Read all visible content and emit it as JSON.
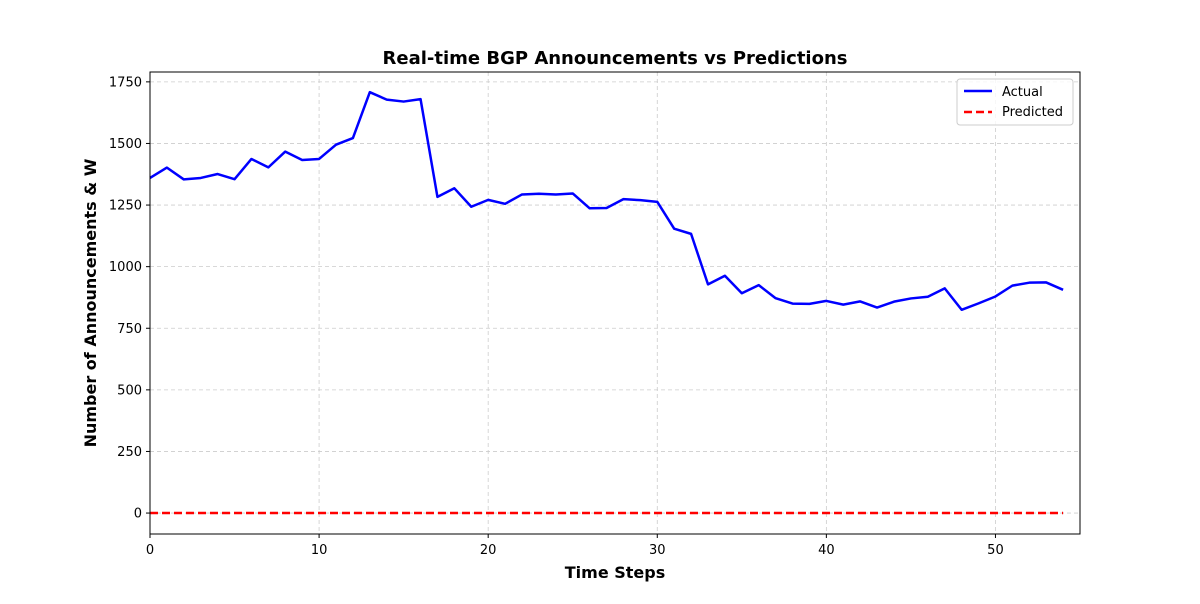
{
  "chart_data": {
    "type": "line",
    "title": "Real-time BGP Announcements vs Predictions",
    "xlabel": "Time Steps",
    "ylabel": "Number of Announcements & W",
    "xlim": [
      0,
      55
    ],
    "ylim": [
      -85,
      1790
    ],
    "xticks": [
      0,
      10,
      20,
      30,
      40,
      50
    ],
    "yticks": [
      0,
      250,
      500,
      750,
      1000,
      1250,
      1500,
      1750
    ],
    "grid": true,
    "grid_style": "dashed",
    "legend_position": "upper right",
    "series": [
      {
        "name": "Actual",
        "color": "#0000ff",
        "line_style": "solid",
        "x": [
          0,
          1,
          2,
          3,
          4,
          5,
          6,
          7,
          8,
          9,
          10,
          11,
          12,
          13,
          14,
          15,
          16,
          17,
          18,
          19,
          20,
          21,
          22,
          23,
          24,
          25,
          26,
          27,
          28,
          29,
          30,
          31,
          32,
          33,
          34,
          35,
          36,
          37,
          38,
          39,
          40,
          41,
          42,
          43,
          44,
          45,
          46,
          47,
          48,
          49,
          50,
          51,
          52,
          53,
          54
        ],
        "values": [
          1360,
          1402,
          1354,
          1360,
          1376,
          1355,
          1437,
          1403,
          1467,
          1433,
          1437,
          1495,
          1522,
          1708,
          1678,
          1670,
          1680,
          1283,
          1318,
          1243,
          1271,
          1255,
          1293,
          1296,
          1293,
          1297,
          1237,
          1238,
          1274,
          1270,
          1263,
          1154,
          1133,
          928,
          963,
          892,
          925,
          872,
          850,
          849,
          861,
          846,
          859,
          834,
          858,
          871,
          878,
          912,
          825,
          851,
          879,
          923,
          935,
          936,
          906
        ]
      },
      {
        "name": "Predicted",
        "color": "#ff0000",
        "line_style": "dashed",
        "x": [
          0,
          1,
          2,
          3,
          4,
          5,
          6,
          7,
          8,
          9,
          10,
          11,
          12,
          13,
          14,
          15,
          16,
          17,
          18,
          19,
          20,
          21,
          22,
          23,
          24,
          25,
          26,
          27,
          28,
          29,
          30,
          31,
          32,
          33,
          34,
          35,
          36,
          37,
          38,
          39,
          40,
          41,
          42,
          43,
          44,
          45,
          46,
          47,
          48,
          49,
          50,
          51,
          52,
          53,
          54
        ],
        "values": [
          0,
          0,
          0,
          0,
          0,
          0,
          0,
          0,
          0,
          0,
          0,
          0,
          0,
          0,
          0,
          0,
          0,
          0,
          0,
          0,
          0,
          0,
          0,
          0,
          0,
          0,
          0,
          0,
          0,
          0,
          0,
          0,
          0,
          0,
          0,
          0,
          0,
          0,
          0,
          0,
          0,
          0,
          0,
          0,
          0,
          0,
          0,
          0,
          0,
          0,
          0,
          0,
          0,
          0,
          0
        ]
      }
    ]
  }
}
